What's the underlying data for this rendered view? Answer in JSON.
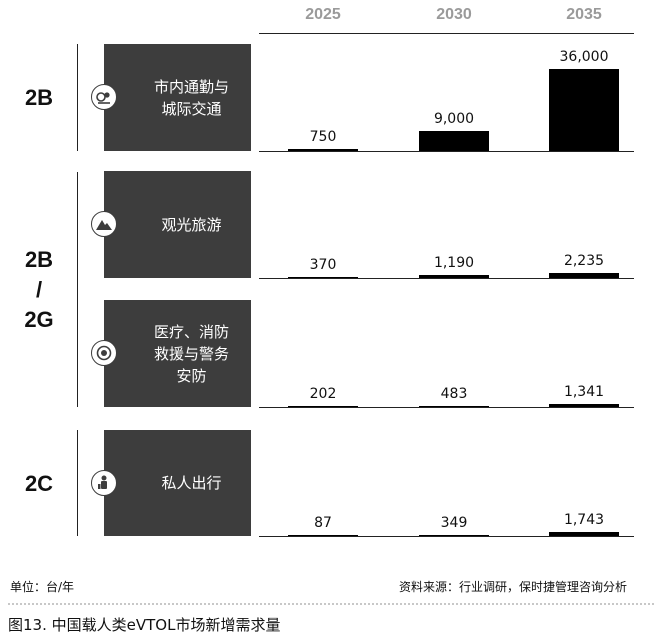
{
  "chart_data": {
    "type": "bar",
    "categories": [
      "2025",
      "2030",
      "2035"
    ],
    "groups": [
      {
        "label": "2B",
        "segments": [
          {
            "name": "市内通勤与城际交通",
            "icon": "commute-icon",
            "values": [
              750,
              9000,
              36000
            ],
            "labels": [
              "750",
              "9,000",
              "36,000"
            ]
          }
        ]
      },
      {
        "label": "2B / 2G",
        "segments": [
          {
            "name": "观光旅游",
            "icon": "mountain-icon",
            "values": [
              370,
              1190,
              2235
            ],
            "labels": [
              "370",
              "1,190",
              "2,235"
            ]
          },
          {
            "name": "医疗、消防救援与警务安防",
            "icon": "emergency-icon",
            "values": [
              202,
              483,
              1341
            ],
            "labels": [
              "202",
              "483",
              "1,341"
            ]
          }
        ]
      },
      {
        "label": "2C",
        "segments": [
          {
            "name": "私人出行",
            "icon": "person-icon",
            "values": [
              87,
              349,
              1743
            ],
            "labels": [
              "87",
              "349",
              "1,743"
            ]
          }
        ]
      }
    ],
    "ymax": 36000,
    "grid": false,
    "legend": "none"
  },
  "texts": {
    "group_2b": "2B",
    "group_2b2g_a": "2B",
    "group_2b2g_sep": "/",
    "group_2b2g_b": "2G",
    "group_2c": "2C",
    "cat1_line1": "市内通勤与",
    "cat1_line2": "城际交通",
    "cat2": "观光旅游",
    "cat3_line1": "医疗、消防",
    "cat3_line2": "救援与警务",
    "cat3_line3": "安防",
    "cat4": "私人出行"
  },
  "footer": {
    "unit": "单位：台/年",
    "source": "资料来源：行业调研，保时捷管理咨询分析",
    "caption": "图13. 中国载人类eVTOL市场新增需求量"
  },
  "colors": {
    "bar": "#000000",
    "box": "#3d3d3d",
    "year": "#9a9a9a"
  }
}
